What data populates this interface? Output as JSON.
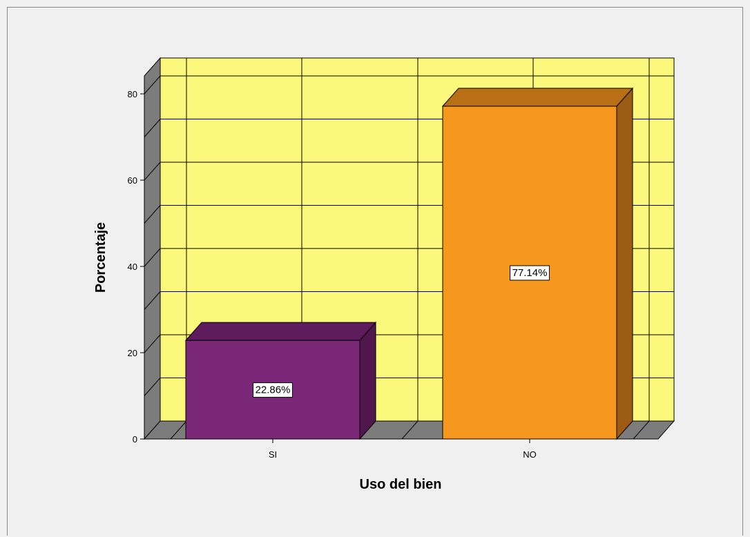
{
  "chart_data": {
    "type": "bar",
    "style": "3d",
    "categories": [
      "SI",
      "NO"
    ],
    "values": [
      22.86,
      77.14
    ],
    "data_labels": [
      "22.86%",
      "77.14%"
    ],
    "title": "",
    "xlabel": "Uso del bien",
    "ylabel": "Porcentaje",
    "ylim": [
      0,
      80
    ],
    "yticks": [
      0,
      20,
      40,
      60,
      80
    ],
    "grid": true,
    "legend": "none"
  },
  "colors": {
    "background": "#f0f0f0",
    "plot_back": "#fbf87c",
    "side_wall": "#7c7c7c",
    "floor": "#7c7c7c",
    "grid": "#000000",
    "bar_fronts": [
      "#7b2778",
      "#f7981e"
    ],
    "bar_tops": [
      "#5f1c5c",
      "#b96f13"
    ],
    "bar_sides": [
      "#4f174c",
      "#9b5b12"
    ]
  }
}
